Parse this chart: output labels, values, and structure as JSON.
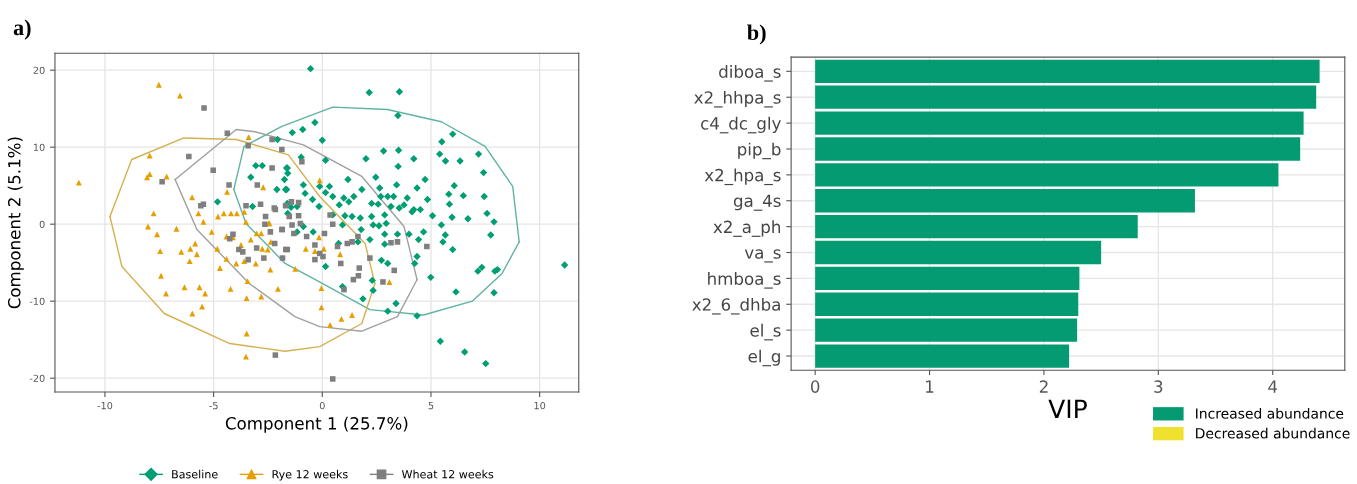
{
  "chart_data": [
    {
      "type": "scatter",
      "xlabel": "Component 1 (25.7%)",
      "ylabel": "Component 2 (5.1%)",
      "annotations": [
        "a)"
      ],
      "xlim": [
        -12.3,
        11.8
      ],
      "ylim": [
        -21.8,
        22.2
      ],
      "xticks": [
        -10,
        -5,
        0,
        5,
        10
      ],
      "yticks": [
        -20,
        -10,
        0,
        10,
        20
      ],
      "grid": true,
      "legend": "bottom",
      "series": [
        {
          "name": "Baseline",
          "type": "scatter",
          "marker": "diamond",
          "color": "#009e73",
          "x": [
            -1.38,
            -2.06,
            -3.06,
            -2.76,
            -3.29,
            -4.82,
            -3.21,
            -1.64,
            -1.59,
            -1.74,
            -2.09,
            -1.64,
            -1.59,
            -1.44,
            -0.54,
            2.16,
            3.55,
            3.48,
            -0.34,
            -0.9,
            0.0,
            6.0,
            5.5,
            7.19,
            5.4,
            5.67,
            6.34,
            2.82,
            3.51,
            4.21,
            2.01,
            3.49,
            0.15,
            -0.97,
            -1.61,
            7.42,
            2.46,
            4.73,
            1.18,
            6.07,
            6.49,
            5.82,
            7.45,
            5.85,
            7.58,
            5.97,
            6.7,
            7.9,
            7.75,
            5.48,
            5.07,
            4.84,
            4.36,
            4.21,
            3.91,
            3.76,
            3.42,
            3.28,
            3.01,
            2.64,
            2.69,
            2.27,
            2.57,
            2.87,
            3.16,
            3.54,
            4.13,
            4.51,
            1.82,
            1.45,
            1.22,
            0.99,
            0.78,
            0.48,
            0.33,
            0.15,
            -0.12,
            -0.87,
            -0.79,
            -1.69,
            -1.61,
            -1.16,
            -0.45,
            -0.15,
            0.48,
            1.04,
            0.93,
            1.37,
            1.75,
            2.27,
            2.34,
            2.61,
            2.94,
            1.79,
            1.64,
            2.19,
            2.87,
            2.87,
            3.46,
            3.99,
            4.43,
            4.66,
            5.66,
            5.55,
            6.0,
            -0.42,
            -0.87,
            -1.16,
            0.15,
            0.75,
            0.93,
            1.87,
            2.3,
            2.72,
            3.01,
            3.01,
            3.39,
            4.25,
            4.36,
            4.99,
            4.36,
            6.15,
            7.16,
            7.34,
            7.94,
            8.06,
            7.9,
            5.43,
            6.55,
            7.52,
            11.15,
            2.34
          ],
          "values": [
            11.9,
            11.0,
            7.6,
            7.6,
            6.1,
            2.9,
            2.3,
            7.3,
            6.6,
            5.8,
            4.5,
            4.5,
            1.4,
            2.2,
            20.2,
            17.1,
            17.2,
            14.1,
            13.2,
            12.3,
            10.9,
            11.7,
            10.7,
            9.1,
            9.1,
            8.2,
            8.2,
            9.5,
            9.6,
            8.5,
            8.5,
            7.5,
            8.3,
            8.7,
            7.3,
            6.7,
            6.1,
            5.8,
            5.8,
            5.0,
            3.7,
            3.9,
            3.6,
            2.6,
            1.4,
            0.9,
            0.7,
            0.3,
            -1.4,
            -0.1,
            1.1,
            3.2,
            4.7,
            1.9,
            3.4,
            2.5,
            5.1,
            3.6,
            3.6,
            4.7,
            3.6,
            2.7,
            2.6,
            1.2,
            2.3,
            2.1,
            1.6,
            1.9,
            4.5,
            3.6,
            2.9,
            3.4,
            2.5,
            3.6,
            4.9,
            4.1,
            4.9,
            5.1,
            4.0,
            4.5,
            2.7,
            2.3,
            3.2,
            2.3,
            1.2,
            1.1,
            -0.1,
            1.0,
            0.8,
            1.0,
            -0.1,
            -0.2,
            0.1,
            -0.7,
            -2.3,
            -2.0,
            -1.3,
            -2.6,
            -1.3,
            -1.3,
            -2.0,
            -1.0,
            -1.4,
            -2.3,
            -3.3,
            -1.0,
            -0.3,
            -1.0,
            -5.5,
            -2.5,
            -8.1,
            -9.7,
            -7.3,
            -4.7,
            -5.1,
            -11.3,
            -10.3,
            -5.1,
            -4.2,
            -6.9,
            -11.9,
            -8.8,
            -6.1,
            -5.6,
            -6.1,
            -5.9,
            -8.9,
            -15.2,
            -16.6,
            -18.1,
            -5.3,
            -8.6
          ]
        },
        {
          "name": "Rye 12 weeks",
          "type": "scatter",
          "marker": "triangle",
          "color": "#e69f00",
          "x": [
            -7.52,
            -6.55,
            -11.2,
            -7.94,
            -8.06,
            -7.94,
            -7.16,
            -7.76,
            -8.02,
            -7.6,
            -7.46,
            -7.42,
            -7.19,
            -6.34,
            -6.49,
            -6.1,
            -5.99,
            -6.07,
            -5.85,
            -5.77,
            -5.7,
            -5.47,
            -6.71,
            -5.98,
            -5.53,
            -5.65,
            -5.39,
            -5.09,
            -4.83,
            -4.71,
            -4.41,
            -4.8,
            -4.53,
            -4.38,
            -4.2,
            -3.93,
            -4.22,
            -3.59,
            -3.51,
            -3.44,
            -3.48,
            -3.48,
            -3.51,
            -3.39,
            -3.02,
            -2.81,
            -2.72,
            -2.46,
            -2.04,
            -4.11,
            -3.74,
            -3.29,
            -2.76,
            -2.39,
            -2.37,
            -4.41,
            -3.59,
            -3.96,
            -3.06,
            -0.12,
            -2.43,
            -2.81,
            -2.51,
            -1.24,
            -0.76,
            -0.34,
            0.07,
            -0.04,
            -0.04,
            0.36,
            0.88,
            1.37,
            0.82,
            3.09,
            -0.15
          ],
          "values": [
            18.1,
            16.7,
            5.4,
            8.9,
            6.1,
            6.5,
            6.2,
            1.4,
            -0.3,
            -1.3,
            -3.5,
            -6.7,
            -9.0,
            -8.2,
            -3.6,
            -4.8,
            3.5,
            -3.2,
            -2.5,
            -3.9,
            1.4,
            0.3,
            -0.6,
            -11.6,
            -10.7,
            -8.2,
            -9.0,
            -1.0,
            -3.2,
            -5.7,
            -4.5,
            1.0,
            1.4,
            4.2,
            1.4,
            1.4,
            -8.4,
            1.6,
            0.3,
            -7.4,
            -9.6,
            -14.2,
            -17.2,
            11.3,
            -1.2,
            -9.4,
            4.8,
            0.1,
            -8.4,
            -1.7,
            -2.7,
            -2.0,
            -3.2,
            -5.9,
            -2.3,
            -1.6,
            -4.8,
            -5.1,
            -5.1,
            5.7,
            0.1,
            -1.2,
            -3.3,
            -5.8,
            -3.2,
            -3.5,
            -3.2,
            -8.3,
            -10.8,
            -13.1,
            -12.3,
            -11.8,
            -3.9,
            -7.5,
            -1.7
          ]
        },
        {
          "name": "Wheat 12 weeks",
          "type": "scatter",
          "marker": "square",
          "color": "#7f7f7f",
          "x": [
            -5.44,
            -4.37,
            -3.41,
            -6.14,
            -5.02,
            -7.37,
            -4.29,
            -5.59,
            -5.47,
            -3.51,
            -2.84,
            -2.99,
            -2.31,
            -1.86,
            -2.31,
            -2.16,
            -2.61,
            -2.64,
            -2.39,
            -2.19,
            -1.86,
            -1.52,
            -4.11,
            -4.26,
            -3.84,
            -3.66,
            -3.41,
            -3.02,
            -2.69,
            -1.83,
            -2.16,
            -1.68,
            -0.94,
            -1.69,
            -1.42,
            -1.09,
            -2.21,
            -1.84,
            -1.39,
            -1.31,
            -1.01,
            -1.09,
            -0.72,
            -0.34,
            0.1,
            0.48,
            0.36,
            -1.61,
            -0.12,
            -0.34,
            0.03,
            0.85,
            1.0,
            1.15,
            1.37,
            1.64,
            1.43,
            1.66,
            1.7,
            2.19,
            2.79,
            3.16,
            3.46,
            3.31,
            4.81,
            0.48,
            0.7
          ],
          "values": [
            15.1,
            11.8,
            10.2,
            8.8,
            7.0,
            5.5,
            5.1,
            2.4,
            2.6,
            2.4,
            2.6,
            5.1,
            11.0,
            9.7,
            7.3,
            1.9,
            1.0,
            0.0,
            -1.0,
            -2.5,
            -0.7,
            1.0,
            -1.3,
            -1.9,
            -3.3,
            -3.6,
            -4.6,
            -3.1,
            -4.4,
            -4.4,
            -17.0,
            -3.3,
            8.1,
            2.4,
            2.9,
            2.8,
            2.1,
            -0.7,
            -0.1,
            -1.2,
            0.1,
            1.1,
            -1.6,
            -2.7,
            -1.2,
            0.0,
            1.2,
            -3.3,
            -3.8,
            -4.6,
            -4.2,
            -5.1,
            -8.5,
            -2.5,
            -2.3,
            -1.6,
            -7.2,
            -6.7,
            -5.7,
            -4.4,
            -7.5,
            -2.4,
            -2.3,
            -6.0,
            -2.9,
            -20.1,
            -2.9
          ]
        },
        {
          "type": "line",
          "marker": "none",
          "color": "#5fb3a3",
          "x": [
            -4.07,
            -3.6,
            -1.86,
            0.48,
            3.0,
            5.48,
            7.49,
            8.76,
            9.06
          ],
          "values": [
            4.5,
            10.1,
            12.7,
            15.2,
            14.9,
            13.3,
            10.1,
            4.9,
            -2.3
          ]
        },
        {
          "type": "line",
          "marker": "none",
          "color": "#5fb3a3",
          "x": [
            -4.07,
            -3.51,
            -1.71,
            0.0,
            2.19,
            4.66,
            6.9,
            8.27,
            9.06
          ],
          "values": [
            4.5,
            0.1,
            -5.1,
            -7.7,
            -11.1,
            -11.8,
            -10.0,
            -6.4,
            -2.3
          ]
        },
        {
          "type": "line",
          "marker": "none",
          "color": "#d4b050",
          "x": [
            -9.77,
            -8.77,
            -6.37,
            -3.96,
            -1.56,
            -0.12,
            1.97,
            2.42
          ],
          "values": [
            1.0,
            8.4,
            11.2,
            11.0,
            9.0,
            3.6,
            -2.5,
            -7.7
          ]
        },
        {
          "type": "line",
          "marker": "none",
          "color": "#d4b050",
          "x": [
            -9.77,
            -9.22,
            -7.27,
            -4.26,
            -1.71,
            -0.12,
            1.82,
            2.42
          ],
          "values": [
            1.0,
            -5.5,
            -11.6,
            -15.5,
            -16.5,
            -15.9,
            -12.9,
            -7.7
          ]
        },
        {
          "type": "line",
          "marker": "none",
          "color": "#a0a0a0",
          "x": [
            -6.77,
            -3.96,
            -3.1,
            -0.87,
            1.82,
            3.76,
            4.36
          ],
          "values": [
            5.8,
            12.3,
            12.0,
            10.3,
            6.2,
            -0.3,
            -7.2
          ]
        },
        {
          "type": "line",
          "marker": "none",
          "color": "#a0a0a0",
          "x": [
            -6.77,
            -5.77,
            -3.36,
            -1.26,
            -0.12,
            1.82,
            3.46,
            4.36
          ],
          "values": [
            5.8,
            -0.7,
            -7.7,
            -12.0,
            -13.3,
            -13.9,
            -12.0,
            -7.2
          ]
        }
      ]
    },
    {
      "type": "bar",
      "orientation": "horizontal",
      "xlabel": "VIP",
      "annotations": [
        "b)"
      ],
      "categories": [
        "diboa_s",
        "x2_hhpa_s",
        "c4_dc_gly",
        "pip_b",
        "x2_hpa_s",
        "ga_4s",
        "x2_a_ph",
        "va_s",
        "hmboa_s",
        "x2_6_dhba",
        "el_s",
        "el_g"
      ],
      "xlim": [
        -0.21,
        4.63
      ],
      "xticks": [
        0,
        1,
        2,
        3,
        4
      ],
      "grid": true,
      "legend": "bottom right",
      "series": [
        {
          "name": "Increased abundance",
          "color": "#049b72",
          "values": [
            4.41,
            4.38,
            4.27,
            4.24,
            4.05,
            3.32,
            2.82,
            2.5,
            2.31,
            2.3,
            2.29,
            2.22
          ]
        },
        {
          "name": "Decreased abundance",
          "color": "#f0e12e",
          "values": [
            null,
            null,
            null,
            null,
            null,
            null,
            null,
            null,
            null,
            null,
            null,
            null
          ]
        }
      ]
    }
  ]
}
